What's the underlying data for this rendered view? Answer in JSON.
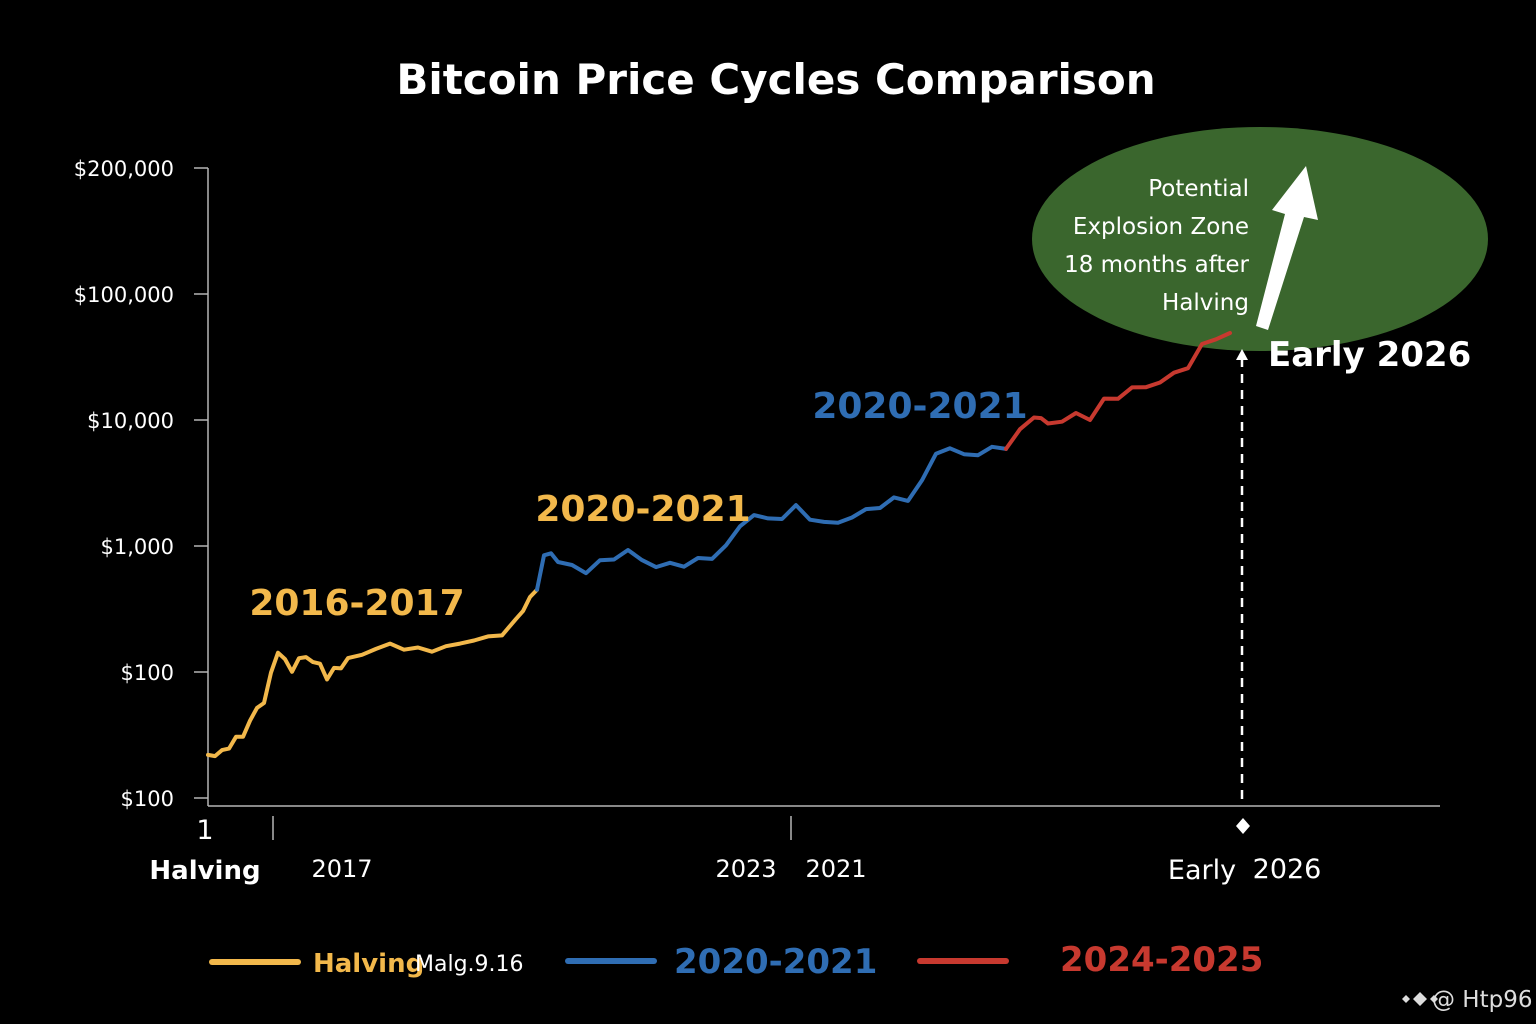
{
  "chart_data": {
    "type": "line",
    "title": "Bitcoin Price Cycles Comparison",
    "y_scale": "log",
    "y_ticks": [
      "$200,000",
      "$100,000",
      "$10,000",
      "$1,000",
      "$100",
      "$100"
    ],
    "x_ticks": [
      "1",
      "Halving",
      "2017",
      "2023",
      "2021",
      "Early",
      "2026"
    ],
    "series": [
      {
        "name": "2016-2017",
        "color": "#f2b84b",
        "points": [
          [
            0.0,
            22
          ],
          [
            0.5,
            22
          ],
          [
            1.0,
            23
          ],
          [
            1.5,
            26
          ],
          [
            2.0,
            29
          ],
          [
            2.5,
            32
          ],
          [
            3.0,
            40
          ],
          [
            3.5,
            52
          ],
          [
            4.0,
            58
          ],
          [
            4.5,
            95
          ],
          [
            5.0,
            150
          ],
          [
            5.5,
            120
          ],
          [
            6.0,
            105
          ],
          [
            6.5,
            125
          ],
          [
            7.0,
            132
          ],
          [
            7.5,
            122
          ],
          [
            8.0,
            112
          ],
          [
            8.5,
            92
          ],
          [
            9.0,
            102
          ],
          [
            9.5,
            112
          ],
          [
            10.0,
            125
          ],
          [
            11.0,
            138
          ],
          [
            12.0,
            155
          ],
          [
            13.0,
            162
          ],
          [
            14.0,
            158
          ],
          [
            15.0,
            148
          ],
          [
            16.0,
            152
          ],
          [
            17.0,
            155
          ],
          [
            18.0,
            170
          ],
          [
            19.0,
            180
          ],
          [
            20.0,
            185
          ],
          [
            21.0,
            205
          ],
          [
            22.0,
            250
          ],
          [
            22.5,
            320
          ],
          [
            23.0,
            380
          ],
          [
            23.5,
            450
          ]
        ]
      },
      {
        "name": "2020-2021",
        "color": "#2f6db3",
        "points": [
          [
            23.5,
            450
          ],
          [
            24.0,
            820
          ],
          [
            24.5,
            880
          ],
          [
            25.0,
            760
          ],
          [
            26.0,
            680
          ],
          [
            27.0,
            640
          ],
          [
            28.0,
            730
          ],
          [
            29.0,
            820
          ],
          [
            30.0,
            900
          ],
          [
            31.0,
            780
          ],
          [
            32.0,
            690
          ],
          [
            33.0,
            710
          ],
          [
            34.0,
            720
          ],
          [
            35.0,
            760
          ],
          [
            36.0,
            830
          ],
          [
            37.0,
            980
          ],
          [
            38.0,
            1450
          ],
          [
            39.0,
            1780
          ],
          [
            40.0,
            1600
          ],
          [
            41.0,
            1720
          ],
          [
            42.0,
            2000
          ],
          [
            43.0,
            1700
          ],
          [
            44.0,
            1500
          ],
          [
            45.0,
            1550
          ],
          [
            46.0,
            1700
          ],
          [
            47.0,
            1900
          ],
          [
            48.0,
            2100
          ],
          [
            49.0,
            2300
          ],
          [
            50.0,
            2400
          ],
          [
            51.0,
            3200
          ],
          [
            52.0,
            5500
          ],
          [
            53.0,
            6000
          ],
          [
            54.0,
            5200
          ],
          [
            55.0,
            5500
          ],
          [
            56.0,
            5800
          ],
          [
            57.0,
            5900
          ]
        ]
      },
      {
        "name": "2024-2025",
        "color": "#c7392f",
        "points": [
          [
            57.0,
            5900
          ],
          [
            58.0,
            8000
          ],
          [
            59.0,
            11000
          ],
          [
            59.5,
            10000
          ],
          [
            60.0,
            9500
          ],
          [
            61.0,
            9800
          ],
          [
            62.0,
            11000
          ],
          [
            63.0,
            10500
          ],
          [
            64.0,
            14000
          ],
          [
            65.0,
            15500
          ],
          [
            66.0,
            17500
          ],
          [
            67.0,
            18500
          ],
          [
            68.0,
            20000
          ],
          [
            69.0,
            23000
          ],
          [
            70.0,
            27000
          ],
          [
            71.0,
            38000
          ],
          [
            72.0,
            46000
          ],
          [
            73.0,
            49000
          ]
        ]
      }
    ],
    "annotations": {
      "cycle_labels": [
        {
          "text": "2016-2017",
          "color": "#f2b84b"
        },
        {
          "text": "2020-2021",
          "color": "#f2b84b"
        },
        {
          "text": "2020-2021",
          "color": "#2f6db3"
        }
      ],
      "zone": {
        "lines": [
          "Potential",
          "Explosion Zone",
          "18 months after",
          "Halving"
        ],
        "color": "#3d6b2f"
      },
      "marker_label": "Early 2026"
    },
    "legend": [
      {
        "label": "Halving",
        "note": "Malg.9.16",
        "color": "#f2b84b"
      },
      {
        "label": "2020-2021",
        "color": "#2f6db3"
      },
      {
        "label": "2024-2025",
        "color": "#c7392f"
      }
    ]
  },
  "watermark": "@ Htp96"
}
